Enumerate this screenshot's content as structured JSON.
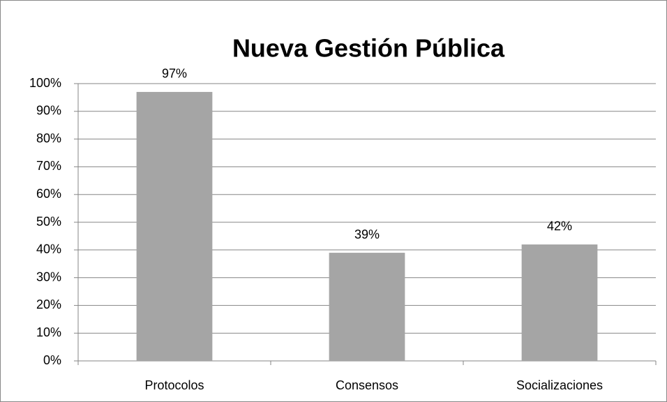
{
  "chart_data": {
    "type": "bar",
    "title": "Nueva Gestión Pública",
    "categories": [
      "Protocolos",
      "Consensos",
      "Socializaciones"
    ],
    "values": [
      97,
      39,
      42
    ],
    "value_labels": [
      "97%",
      "39%",
      "42%"
    ],
    "color": "#a5a5a5",
    "ylim": [
      0,
      100
    ],
    "yticks": [
      {
        "value": 0,
        "label": "0%"
      },
      {
        "value": 10,
        "label": "10%"
      },
      {
        "value": 20,
        "label": "20%"
      },
      {
        "value": 30,
        "label": "30%"
      },
      {
        "value": 40,
        "label": "40%"
      },
      {
        "value": 50,
        "label": "50%"
      },
      {
        "value": 60,
        "label": "60%"
      },
      {
        "value": 70,
        "label": "70%"
      },
      {
        "value": 80,
        "label": "80%"
      },
      {
        "value": 90,
        "label": "90%"
      },
      {
        "value": 100,
        "label": "100%"
      }
    ],
    "grid": true
  }
}
